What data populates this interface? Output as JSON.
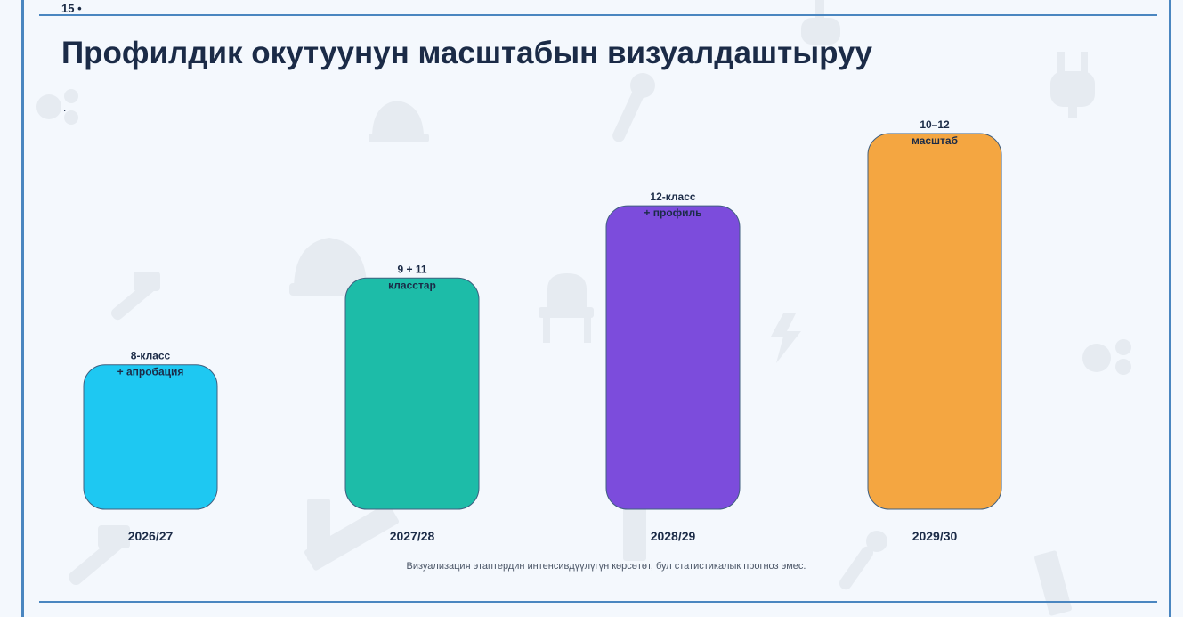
{
  "slide": {
    "page_number": "15 •",
    "title": "Профилдик окутуунун масштабын визуалдаштыруу",
    "dot": ".",
    "footnote": "Визуализация этаптердин интенсивдүүлүгүн көрсөтөт, бул статистикалык прогноз эмес."
  },
  "colors": {
    "rule": "#4a86c0",
    "title": "#1b2b47",
    "background": "#f4f8fd"
  },
  "background_icons": [
    "gear-icon",
    "hard-hat-icon",
    "wrench-icon",
    "plug-icon",
    "hammer-icon",
    "chair-icon",
    "lightning-icon",
    "ruler-icon"
  ],
  "chart_data": {
    "type": "bar",
    "categories": [
      "2026/27",
      "2027/28",
      "2028/29",
      "2029/30"
    ],
    "values": [
      1,
      1.6,
      2.1,
      2.6
    ],
    "value_note": "",
    "bar_labels": [
      [
        "8-класс",
        "+ апробация"
      ],
      [
        "9 + 11",
        "класстар"
      ],
      [
        "12-класс",
        "+ профиль"
      ],
      [
        "10–12",
        "масштаб"
      ]
    ],
    "colors": [
      "#1ec8f2",
      "#1dbca8",
      "#7c4cdc",
      "#f4a641"
    ],
    "ylim": [
      0,
      2.6
    ],
    "grid": false,
    "title": "",
    "xlabel": "",
    "ylabel": ""
  }
}
